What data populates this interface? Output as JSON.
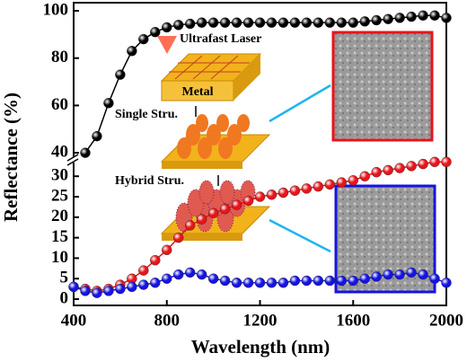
{
  "chart_data": {
    "type": "line",
    "xlabel": "Wavelength (nm)",
    "ylabel": "Reflectance (%)",
    "x": [
      400,
      450,
      500,
      550,
      600,
      650,
      700,
      750,
      800,
      850,
      900,
      950,
      1000,
      1050,
      1100,
      1150,
      1200,
      1250,
      1300,
      1350,
      1400,
      1450,
      1500,
      1550,
      1600,
      1650,
      1700,
      1750,
      1800,
      1850,
      1900,
      1950,
      2000
    ],
    "series": [
      {
        "color": "#000000",
        "values": [
          null,
          40,
          47,
          61,
          73,
          83,
          88,
          91,
          93,
          94,
          94.5,
          95,
          95,
          95,
          95,
          95,
          95,
          95,
          95,
          95,
          95,
          95,
          95,
          95,
          95,
          95.5,
          96,
          96.5,
          97,
          97.5,
          98,
          98,
          97
        ]
      },
      {
        "color": "#e8141a",
        "values": [
          3,
          2.5,
          2,
          2.5,
          3.5,
          5,
          7,
          9.5,
          12,
          15,
          18,
          19.5,
          21,
          22,
          23,
          24,
          25,
          25.5,
          26,
          26.5,
          27,
          27.5,
          28,
          28.5,
          29,
          30,
          31,
          31.5,
          32,
          32.5,
          33,
          33.5,
          33.5
        ]
      },
      {
        "color": "#1414e0",
        "values": [
          3,
          2,
          1.5,
          2,
          2.5,
          3,
          3.5,
          4,
          5,
          6,
          6.5,
          6,
          5,
          4.5,
          4,
          4,
          4,
          4,
          4,
          4.5,
          4.5,
          4.5,
          4.5,
          4.5,
          4.5,
          5,
          5.5,
          6,
          6,
          6.5,
          6,
          5,
          4
        ]
      }
    ],
    "xlim": [
      400,
      2000
    ],
    "xticks": [
      400,
      800,
      1200,
      1600,
      2000
    ],
    "ylim": [
      0,
      100
    ],
    "ybreak": [
      34,
      37
    ],
    "yticks": [
      0,
      5,
      10,
      15,
      20,
      25,
      30,
      40,
      60,
      80,
      100
    ],
    "annotations": [
      "Ultrafast Laser",
      "Metal",
      "Single Stru.",
      "Hybrid Stru."
    ]
  }
}
